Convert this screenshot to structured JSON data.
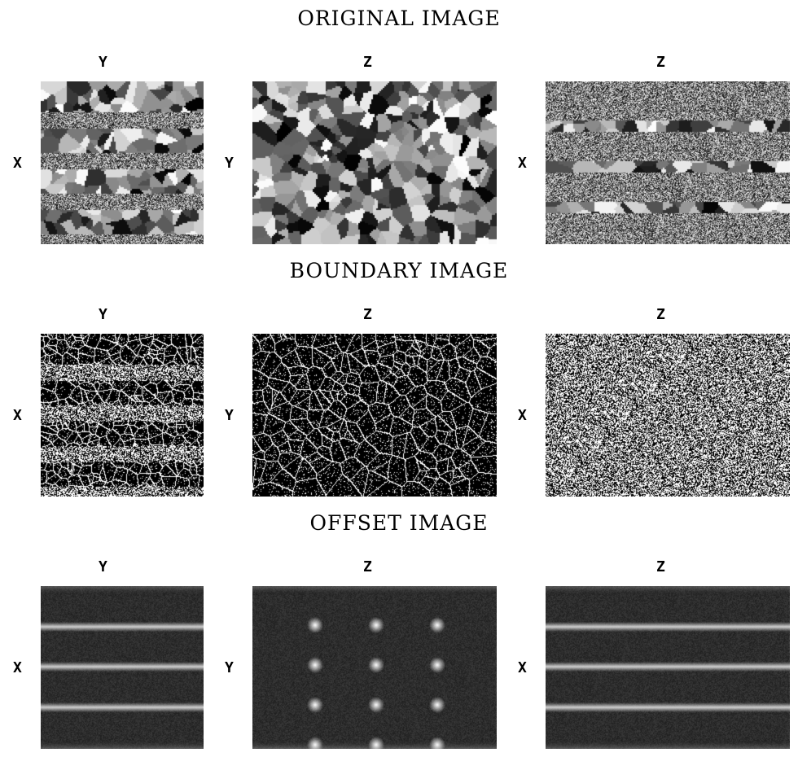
{
  "titles": {
    "original": "ORIGINAL IMAGE",
    "boundary": "BOUNDARY IMAGE",
    "offset": "OFFSET IMAGE"
  },
  "axes": {
    "col1_top": "Y",
    "col2_top": "Z",
    "col3_top": "Z",
    "col1_side": "X",
    "col2_side": "Y",
    "col3_side": "X"
  },
  "panels": {
    "original": [
      "original-xy-slice",
      "original-yz-slice",
      "original-xz-slice"
    ],
    "boundary": [
      "boundary-xy-slice",
      "boundary-yz-slice",
      "boundary-xz-slice"
    ],
    "offset": [
      "offset-xy-slice",
      "offset-yz-slice",
      "offset-xz-slice"
    ]
  }
}
